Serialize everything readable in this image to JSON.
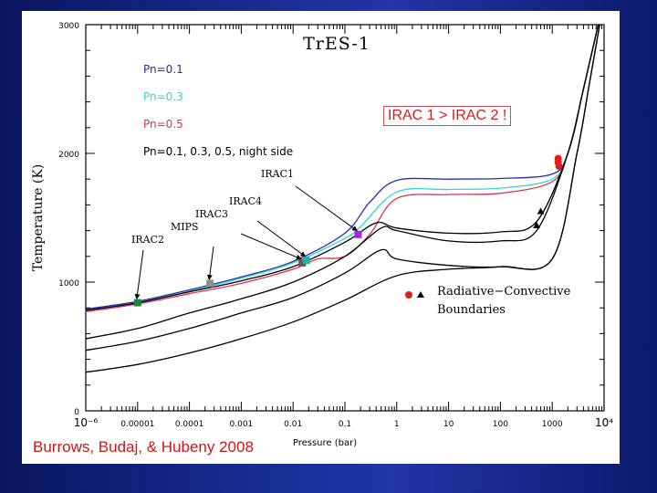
{
  "annotation_box": "IRAC 1 > IRAC 2 !",
  "credit": "Burrows, Budaj, & Hubeny 2008",
  "chart_data": {
    "type": "line",
    "title": "TrES-1",
    "xlabel": "Pressure (bar)",
    "ylabel": "Temperature (K)",
    "xscale": "log",
    "xlim": [
      1e-06,
      10000
    ],
    "ylim": [
      0,
      3000
    ],
    "x_tick_labels": [
      "10⁻⁶",
      "0.00001",
      "0.0001",
      "0.001",
      "0.01",
      "0.1",
      "1",
      "10",
      "100",
      "1000",
      "10⁴"
    ],
    "x_tick_values": [
      1e-06,
      1e-05,
      0.0001,
      0.001,
      0.01,
      0.1,
      1,
      10,
      100,
      1000,
      10000
    ],
    "y_ticks": [
      0,
      1000,
      2000,
      3000
    ],
    "legend": [
      {
        "label": "Pn=0.1",
        "color": "#2a2ab0"
      },
      {
        "label": "Pn=0.3",
        "color": "#30d8c8"
      },
      {
        "label": "Pn=0.5",
        "color": "#e03050"
      },
      {
        "label": "Pn=0.1, 0.3, 0.5, night side",
        "color": "#000000"
      }
    ],
    "legend_placement": "top-left",
    "series": [
      {
        "color": "#2a2ab0",
        "points": [
          [
            1e-06,
            790
          ],
          [
            1e-05,
            850
          ],
          [
            0.0001,
            940
          ],
          [
            0.001,
            1040
          ],
          [
            0.01,
            1160
          ],
          [
            0.1,
            1380
          ],
          [
            0.3,
            1620
          ],
          [
            1,
            1790
          ],
          [
            10,
            1800
          ],
          [
            100,
            1805
          ],
          [
            1000,
            1840
          ],
          [
            2000,
            2000
          ],
          [
            4000,
            2500
          ],
          [
            10000,
            3200
          ]
        ]
      },
      {
        "color": "#30d8c8",
        "points": [
          [
            1e-06,
            780
          ],
          [
            1e-05,
            840
          ],
          [
            0.0001,
            930
          ],
          [
            0.001,
            1030
          ],
          [
            0.01,
            1150
          ],
          [
            0.1,
            1340
          ],
          [
            0.2,
            1430
          ],
          [
            1,
            1700
          ],
          [
            10,
            1720
          ],
          [
            100,
            1730
          ],
          [
            1000,
            1800
          ],
          [
            2000,
            2000
          ],
          [
            4000,
            2500
          ],
          [
            10000,
            3200
          ]
        ]
      },
      {
        "color": "#e03050",
        "points": [
          [
            1e-06,
            770
          ],
          [
            1e-05,
            830
          ],
          [
            0.0001,
            910
          ],
          [
            0.001,
            990
          ],
          [
            0.01,
            1100
          ],
          [
            0.03,
            1180
          ],
          [
            0.1,
            1200
          ],
          [
            0.3,
            1370
          ],
          [
            1,
            1650
          ],
          [
            10,
            1680
          ],
          [
            100,
            1690
          ],
          [
            1000,
            1780
          ],
          [
            2000,
            2000
          ],
          [
            4000,
            2500
          ],
          [
            10000,
            3200
          ]
        ]
      },
      {
        "color": "#000000",
        "points": [
          [
            1e-06,
            780
          ],
          [
            1e-05,
            840
          ],
          [
            0.0001,
            925
          ],
          [
            0.001,
            1010
          ],
          [
            0.01,
            1120
          ],
          [
            0.1,
            1310
          ],
          [
            0.4,
            1460
          ],
          [
            1,
            1420
          ],
          [
            10,
            1380
          ],
          [
            100,
            1390
          ],
          [
            500,
            1470
          ],
          [
            2000,
            2000
          ],
          [
            4000,
            2500
          ],
          [
            10000,
            3200
          ]
        ]
      },
      {
        "color": "#000000",
        "points": [
          [
            1e-06,
            560
          ],
          [
            1e-05,
            640
          ],
          [
            0.0001,
            760
          ],
          [
            0.001,
            870
          ],
          [
            0.01,
            1000
          ],
          [
            0.1,
            1200
          ],
          [
            0.5,
            1420
          ],
          [
            1,
            1400
          ],
          [
            10,
            1320
          ],
          [
            100,
            1320
          ],
          [
            500,
            1400
          ],
          [
            2000,
            2000
          ],
          [
            4000,
            2500
          ],
          [
            10000,
            3200
          ]
        ]
      },
      {
        "color": "#000000",
        "points": [
          [
            1e-06,
            470
          ],
          [
            1e-05,
            540
          ],
          [
            0.0001,
            640
          ],
          [
            0.001,
            760
          ],
          [
            0.01,
            880
          ],
          [
            0.1,
            1070
          ],
          [
            0.5,
            1250
          ],
          [
            1,
            1180
          ],
          [
            10,
            1130
          ],
          [
            100,
            1120
          ],
          [
            1000,
            1180
          ],
          [
            3000,
            2000
          ],
          [
            5000,
            2500
          ],
          [
            10000,
            3200
          ]
        ]
      },
      {
        "color": "#000000",
        "points": [
          [
            1e-06,
            300
          ],
          [
            1e-05,
            360
          ],
          [
            0.0001,
            450
          ],
          [
            0.001,
            560
          ],
          [
            0.01,
            690
          ],
          [
            0.1,
            860
          ],
          [
            1,
            1050
          ],
          [
            10,
            1100
          ],
          [
            100,
            1120
          ],
          [
            1000,
            1180
          ],
          [
            3000,
            2000
          ],
          [
            5000,
            2500
          ],
          [
            10000,
            3200
          ]
        ]
      }
    ],
    "markers": [
      {
        "label": "IRAC2",
        "x": 1e-05,
        "y": 840,
        "color": "#1a8a3a"
      },
      {
        "label": "MIPS",
        "x": 0.00025,
        "y": 990,
        "color": "#909090"
      },
      {
        "label": "IRAC3",
        "x": 0.015,
        "y": 1150,
        "color": "#705030"
      },
      {
        "label": "IRAC4",
        "x": 0.018,
        "y": 1170,
        "color": "#20b0b0"
      },
      {
        "label": "IRAC1",
        "x": 0.18,
        "y": 1370,
        "color": "#b020e0"
      }
    ],
    "boundary_markers": [
      {
        "x": 1300,
        "y": 1960,
        "shape": "circle",
        "color": "#e02020"
      },
      {
        "x": 1300,
        "y": 1930,
        "shape": "circle",
        "color": "#e02020"
      },
      {
        "x": 1350,
        "y": 1900,
        "shape": "circle",
        "color": "#e02020"
      },
      {
        "x": 600,
        "y": 1550,
        "shape": "triangle",
        "color": "#000000"
      },
      {
        "x": 500,
        "y": 1440,
        "shape": "triangle",
        "color": "#000000"
      }
    ],
    "boundary_legend": [
      "Radiative−Convective",
      "Boundaries"
    ]
  }
}
